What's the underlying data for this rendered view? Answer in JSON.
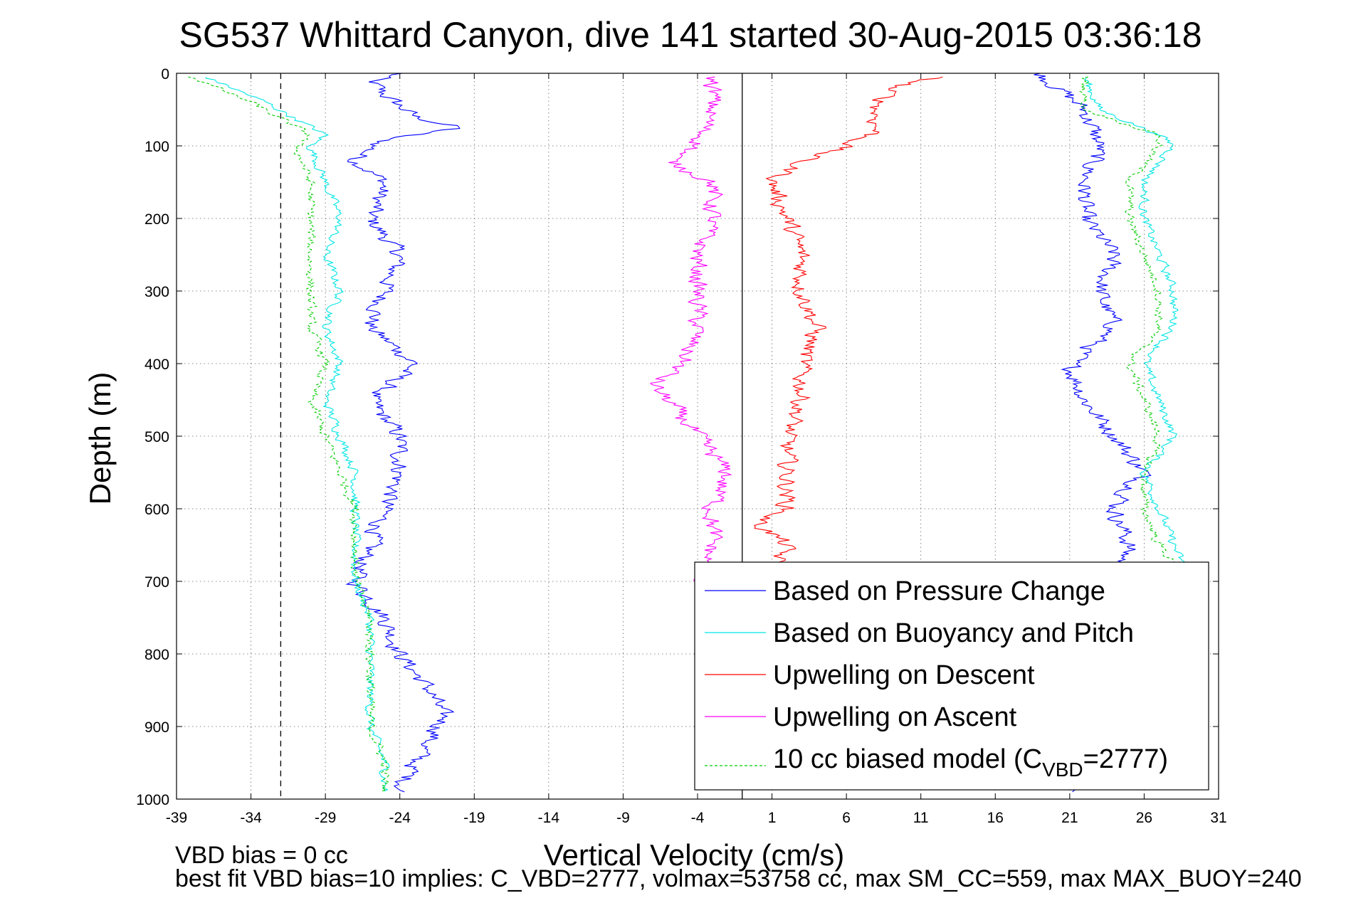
{
  "chart_data": {
    "type": "line",
    "title": "SG537 Whittard Canyon, dive 141 started 30-Aug-2015 03:36:18",
    "xlabel": "Vertical Velocity (cm/s)",
    "ylabel": "Depth (m)",
    "xlim": [
      -39,
      31
    ],
    "ylim": [
      0,
      1000
    ],
    "y_reversed": true,
    "grid": true,
    "xticks": [
      -39,
      -34,
      -29,
      -24,
      -19,
      -14,
      -9,
      -4,
      1,
      6,
      11,
      16,
      21,
      26,
      31
    ],
    "yticks": [
      0,
      100,
      200,
      300,
      400,
      500,
      600,
      700,
      800,
      900,
      1000
    ],
    "reference_lines": [
      {
        "x": -32,
        "style": "dashed",
        "color": "#000000"
      },
      {
        "x": -1,
        "style": "solid",
        "color": "#000000"
      }
    ],
    "legend": {
      "placement": "bottom-right",
      "entries": [
        "Based on Pressure Change",
        "Based on Buoyancy and Pitch",
        "Upwelling on Descent",
        "Upwelling on Ascent"
      ],
      "model_entry": {
        "prefix": "10 cc biased model (C",
        "subscript": "VBD",
        "suffix": "=2777)"
      }
    },
    "series": [
      {
        "name": "Based on Pressure Change",
        "color": "#0000ff",
        "style": "solid",
        "noise": 1.0,
        "branches": [
          {
            "depth": [
              0,
              10,
              30,
              60,
              75,
              90,
              120,
              150,
              200,
              250,
              300,
              350,
              400,
              450,
              500,
              550,
              600,
              650,
              700,
              750,
              800,
              850,
              890,
              950,
              990
            ],
            "velocity": [
              -24,
              -26,
              -25,
              -23,
              -20,
              -25,
              -27,
              -25,
              -26,
              -24,
              -25,
              -26,
              -23,
              -26,
              -24,
              -24,
              -25,
              -26,
              -27,
              -25,
              -24,
              -22,
              -21,
              -23,
              -24
            ]
          },
          {
            "depth": [
              0,
              50,
              100,
              150,
              200,
              250,
              300,
              350,
              400,
              450,
              500,
              550,
              600,
              650,
              700,
              750,
              800,
              850,
              900,
              950,
              990
            ],
            "velocity": [
              19,
              22,
              23,
              22,
              22,
              24,
              23,
              24,
              21,
              22,
              24,
              26,
              24,
              25,
              24,
              24,
              23,
              22,
              23,
              22,
              21
            ]
          }
        ]
      },
      {
        "name": "Based on Buoyancy and Pitch",
        "color": "#00e5e5",
        "style": "solid",
        "noise": 0.5,
        "branches": [
          {
            "depth": [
              5,
              40,
              85,
              100,
              150,
              200,
              250,
              300,
              350,
              400,
              450,
              500,
              550,
              600,
              650,
              700,
              750,
              800,
              850,
              900,
              950,
              990
            ],
            "velocity": [
              -37,
              -33,
              -29,
              -30,
              -29,
              -28,
              -29,
              -28,
              -29,
              -28,
              -29,
              -28,
              -27,
              -27,
              -27,
              -27,
              -26,
              -26,
              -26,
              -26,
              -25,
              -25
            ]
          },
          {
            "depth": [
              5,
              50,
              85,
              100,
              150,
              200,
              250,
              300,
              350,
              400,
              450,
              500,
              550,
              600,
              650,
              700,
              750
            ],
            "velocity": [
              22,
              23,
              27,
              28,
              26,
              26,
              27,
              28,
              28,
              26,
              27,
              28,
              26,
              27,
              28,
              29,
              30
            ]
          }
        ]
      },
      {
        "name": "Upwelling on Descent",
        "color": "#ff0000",
        "style": "solid",
        "noise": 1.0,
        "branches": [
          {
            "depth": [
              5,
              20,
              50,
              80,
              100,
              120,
              150,
              200,
              250,
              300,
              350,
              400,
              450,
              500,
              550,
              600,
              620,
              650,
              680
            ],
            "velocity": [
              12,
              9,
              8,
              8,
              6,
              3,
              1,
              2,
              3,
              3,
              4,
              3,
              3,
              2,
              2,
              2,
              0,
              2,
              1
            ]
          }
        ]
      },
      {
        "name": "Upwelling on Ascent",
        "color": "#ff00ff",
        "style": "solid",
        "noise": 1.0,
        "branches": [
          {
            "depth": [
              5,
              50,
              100,
              120,
              150,
              200,
              250,
              300,
              350,
              400,
              430,
              450,
              500,
              550,
              600,
              650,
              700
            ],
            "velocity": [
              -3,
              -3,
              -4,
              -6,
              -3,
              -3,
              -4,
              -4,
              -4,
              -5,
              -7,
              -6,
              -4,
              -2,
              -3,
              -3,
              -4
            ]
          }
        ]
      },
      {
        "name": "10 cc biased model",
        "color": "#00cc00",
        "style": "dashed",
        "noise": 0.5,
        "branches": [
          {
            "depth": [
              5,
              40,
              85,
              100,
              150,
              200,
              250,
              300,
              350,
              400,
              450,
              500,
              550,
              600,
              650,
              700,
              750,
              800,
              850,
              900,
              950,
              990
            ],
            "velocity": [
              -38,
              -34,
              -30,
              -31,
              -30,
              -30,
              -30,
              -30,
              -30,
              -29,
              -30,
              -29,
              -28,
              -27,
              -27,
              -27,
              -26,
              -26,
              -26,
              -26,
              -25,
              -25
            ]
          },
          {
            "depth": [
              5,
              50,
              85,
              100,
              150,
              200,
              250,
              300,
              350,
              400,
              450,
              500,
              550,
              600,
              650,
              700
            ],
            "velocity": [
              22,
              22,
              27,
              27,
              25,
              25,
              26,
              27,
              27,
              25,
              26,
              27,
              26,
              26,
              27,
              29
            ]
          }
        ]
      }
    ]
  },
  "footer": {
    "line1": "VBD bias = 0 cc",
    "line2": "best fit VBD bias=10 implies: C_VBD=2777, volmax=53758 cc, max SM_CC=559, max MAX_BUOY=240"
  }
}
